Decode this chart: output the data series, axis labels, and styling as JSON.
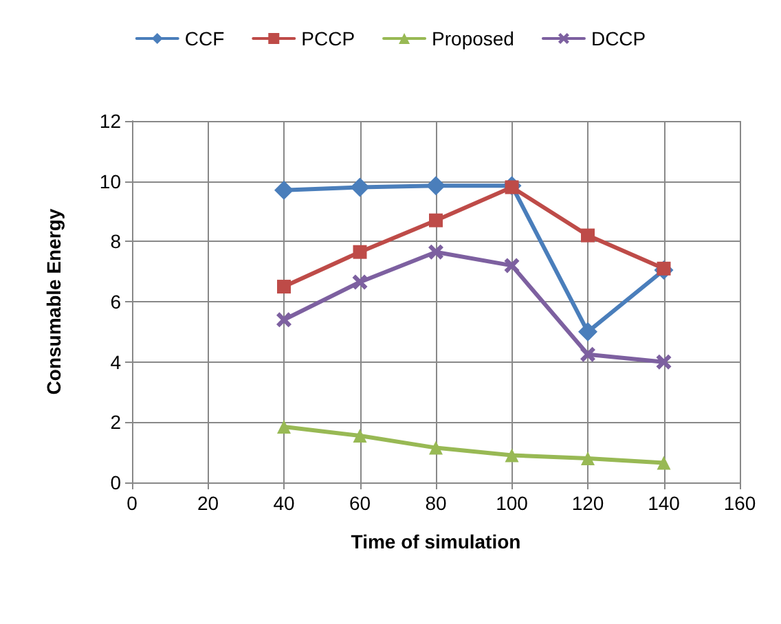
{
  "chart_data": {
    "type": "line",
    "xlabel": "Time of simulation",
    "ylabel": "Consumable Energy",
    "x": [
      40,
      60,
      80,
      100,
      120,
      140
    ],
    "series": [
      {
        "name": "CCF",
        "color": "#4a7ebb",
        "marker": "diamond",
        "values": [
          9.7,
          9.8,
          9.85,
          9.85,
          5.0,
          7.05
        ]
      },
      {
        "name": "PCCP",
        "color": "#be4b48",
        "marker": "square",
        "values": [
          6.5,
          7.65,
          8.7,
          9.8,
          8.2,
          7.1
        ]
      },
      {
        "name": "Proposed",
        "color": "#98b954",
        "marker": "triangle",
        "values": [
          1.85,
          1.55,
          1.15,
          0.9,
          0.8,
          0.65
        ]
      },
      {
        "name": "DCCP",
        "color": "#7d60a0",
        "marker": "cross",
        "values": [
          5.4,
          6.65,
          7.65,
          7.2,
          4.25,
          4.0
        ]
      }
    ],
    "xlim": [
      0,
      160
    ],
    "xticks": [
      0,
      20,
      40,
      60,
      80,
      100,
      120,
      140,
      160
    ],
    "ylim": [
      0,
      12
    ],
    "yticks": [
      0,
      2,
      4,
      6,
      8,
      10,
      12
    ],
    "grid": true,
    "legend": "top",
    "line_style": "solid"
  }
}
